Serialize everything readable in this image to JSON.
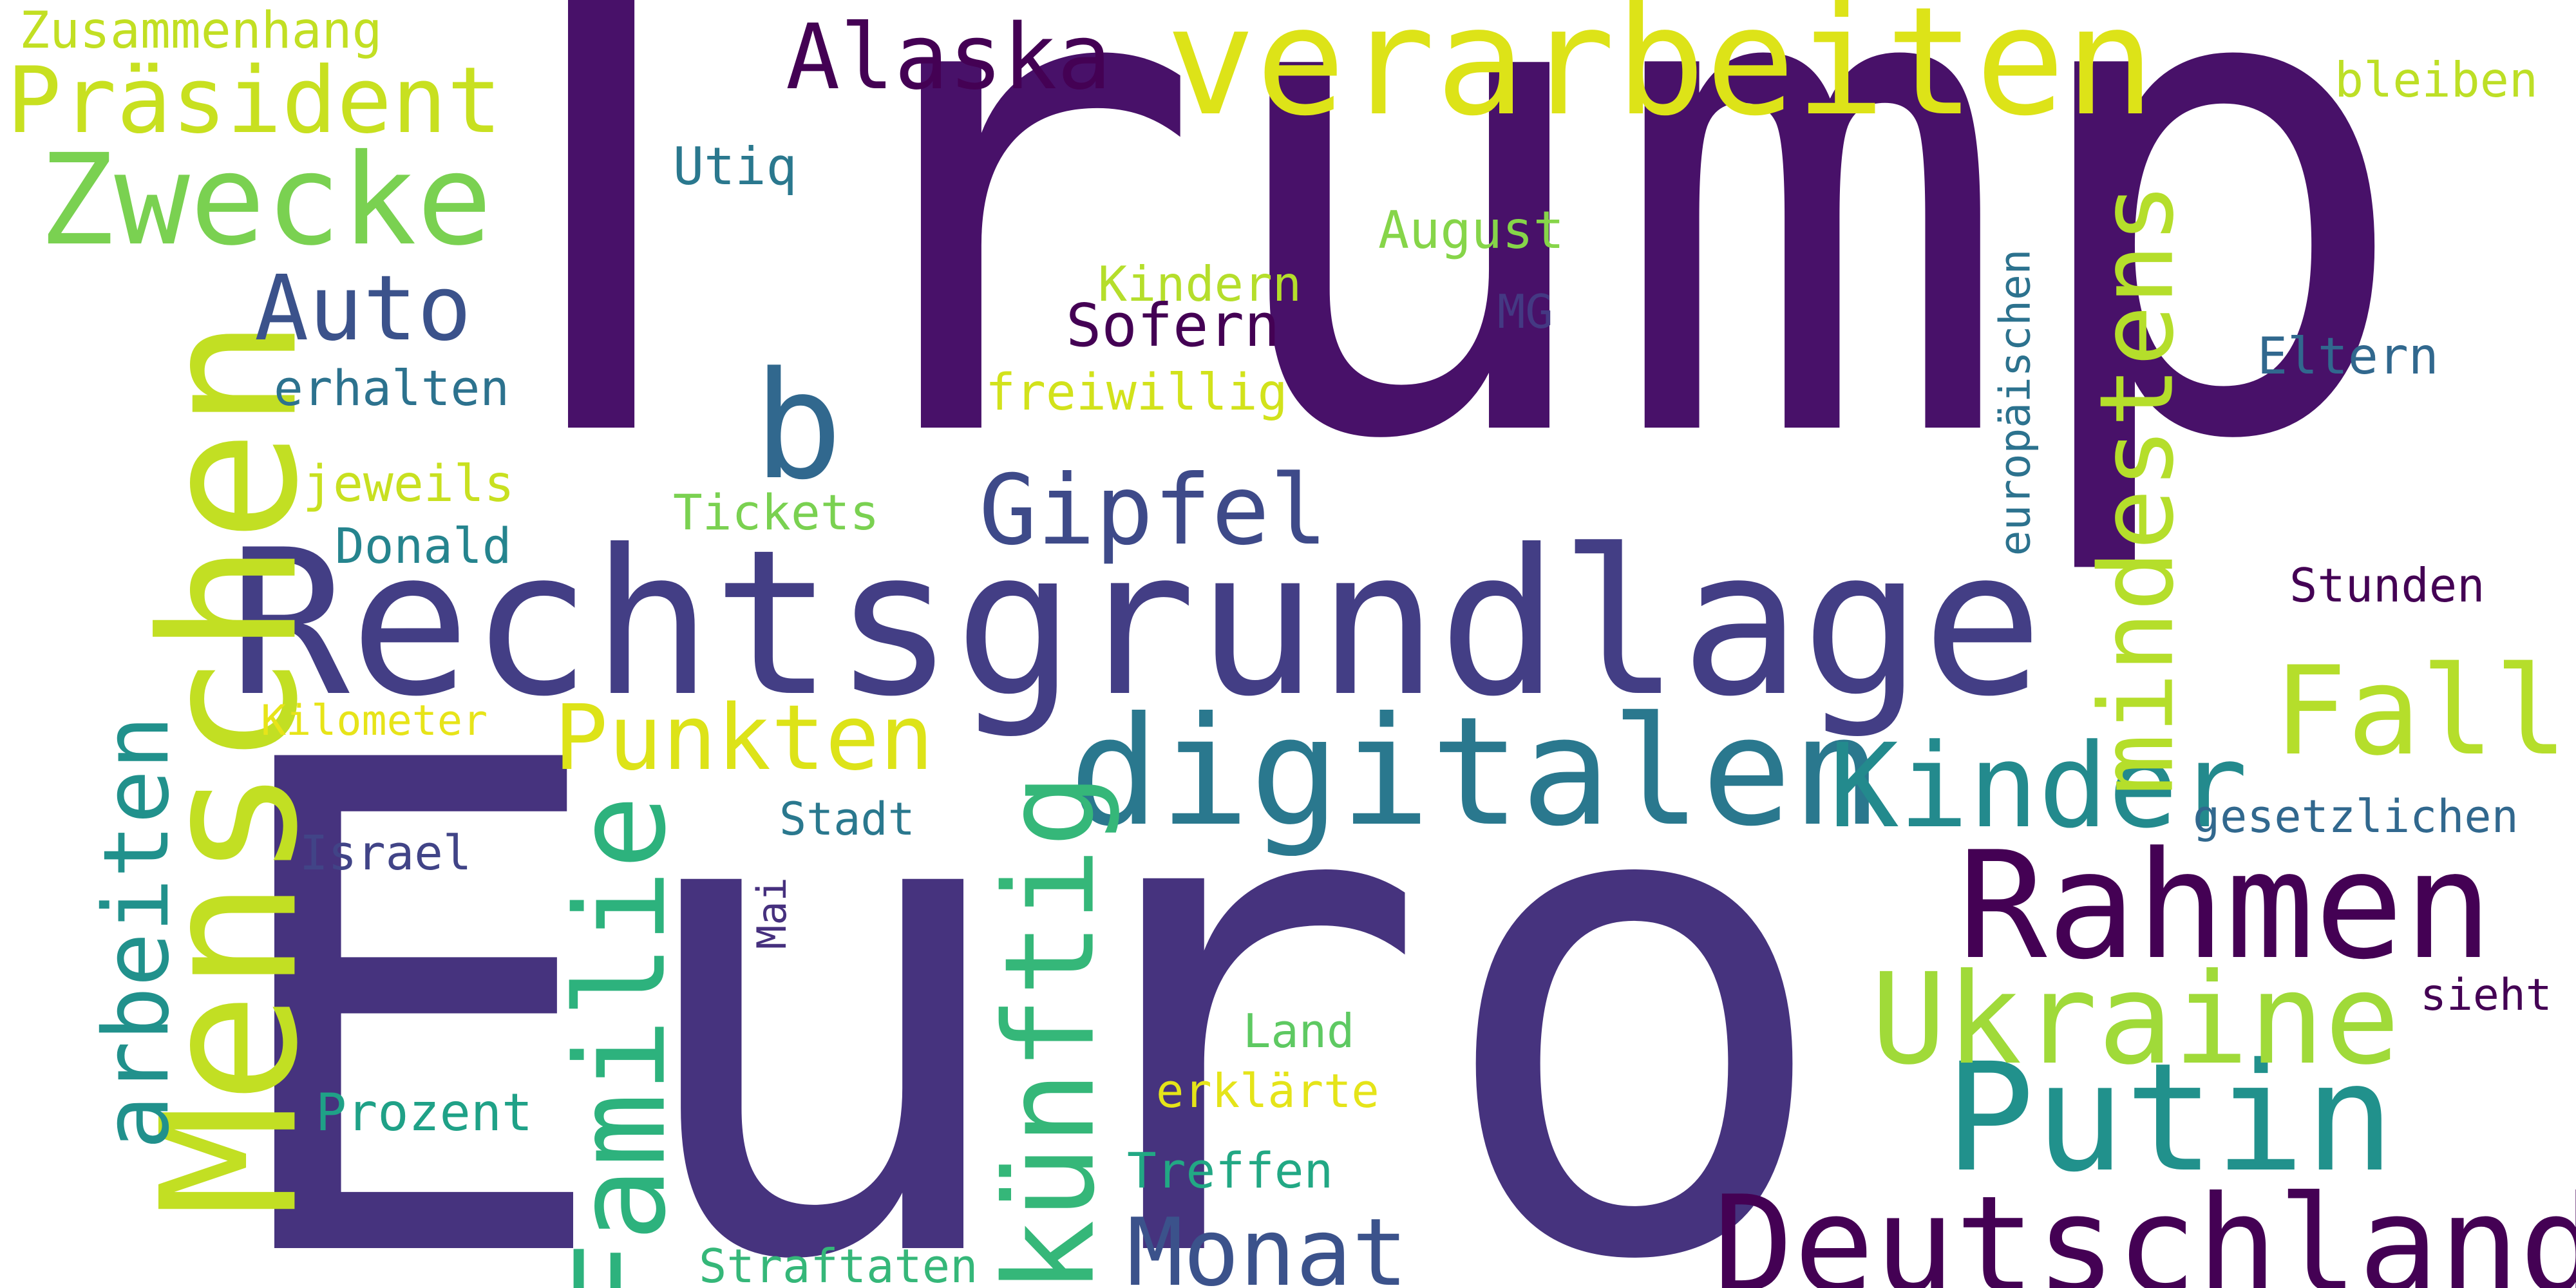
{
  "words": [
    {
      "text": "Trump",
      "color": "#481169"
    },
    {
      "text": "Euro",
      "color": "#46337e"
    },
    {
      "text": "Rechtsgrundlage",
      "color": "#433e85"
    },
    {
      "text": "Menschen",
      "color": "#c2df23"
    },
    {
      "text": "verarbeiten",
      "color": "#dde318"
    },
    {
      "text": "digitalen",
      "color": "#2a788e"
    },
    {
      "text": "Rahmen",
      "color": "#440154"
    },
    {
      "text": "Deutschland",
      "color": "#440154"
    },
    {
      "text": "Putin",
      "color": "#21918c"
    },
    {
      "text": "Ukraine",
      "color": "#a0da39"
    },
    {
      "text": "Kinder",
      "color": "#238a8d"
    },
    {
      "text": "Fall",
      "color": "#b5de2b"
    },
    {
      "text": "Familie",
      "color": "#2db27d"
    },
    {
      "text": "künftig",
      "color": "#35b779"
    },
    {
      "text": "Zwecke",
      "color": "#7ad151"
    },
    {
      "text": "mindestens",
      "color": "#b5de2b"
    },
    {
      "text": "Präsident",
      "color": "#c8e020"
    },
    {
      "text": "arbeiten",
      "color": "#21918c"
    },
    {
      "text": "Alaska",
      "color": "#440154"
    },
    {
      "text": "Gipfel",
      "color": "#3e4a89"
    },
    {
      "text": "Auto",
      "color": "#3b528b"
    },
    {
      "text": "b",
      "color": "#31688e"
    },
    {
      "text": "Punkten",
      "color": "#dde318"
    },
    {
      "text": "Monat",
      "color": "#3b528b"
    },
    {
      "text": "europäischen",
      "color": "#2c728e"
    },
    {
      "text": "Zusammenhang",
      "color": "#c2df23"
    },
    {
      "text": "bleiben",
      "color": "#bddf26"
    },
    {
      "text": "Utiq",
      "color": "#2a788e"
    },
    {
      "text": "August",
      "color": "#86d549"
    },
    {
      "text": "Kindern",
      "color": "#b5de2b"
    },
    {
      "text": "MG",
      "color": "#443983"
    },
    {
      "text": "Sofern",
      "color": "#440154"
    },
    {
      "text": "freiwillig",
      "color": "#d2e21b"
    },
    {
      "text": "erhalten",
      "color": "#2c728e"
    },
    {
      "text": "Eltern",
      "color": "#31688e"
    },
    {
      "text": "jeweils",
      "color": "#c8e020"
    },
    {
      "text": "Tickets",
      "color": "#7ad151"
    },
    {
      "text": "Donald",
      "color": "#25848e"
    },
    {
      "text": "Stunden",
      "color": "#440154"
    },
    {
      "text": "Kilometer",
      "color": "#e7e419"
    },
    {
      "text": "Stadt",
      "color": "#2a788e"
    },
    {
      "text": "gesetzlichen",
      "color": "#31688e"
    },
    {
      "text": "Israel",
      "color": "#414487"
    },
    {
      "text": "Mai",
      "color": "#46307e"
    },
    {
      "text": "sieht",
      "color": "#440154"
    },
    {
      "text": "Land",
      "color": "#5ec962"
    },
    {
      "text": "erklärte",
      "color": "#e5e419"
    },
    {
      "text": "Prozent",
      "color": "#1fa187"
    },
    {
      "text": "Treffen",
      "color": "#22a884"
    },
    {
      "text": "Straftaten",
      "color": "#35b779"
    }
  ]
}
